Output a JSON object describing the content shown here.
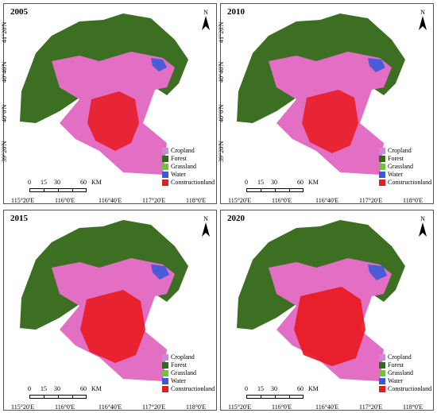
{
  "panels": [
    {
      "year": "2005"
    },
    {
      "year": "2010"
    },
    {
      "year": "2015"
    },
    {
      "year": "2020"
    }
  ],
  "north_label": "N",
  "lat_labels": [
    "41°20'N",
    "40°40'N",
    "40°0'N",
    "39°20'N"
  ],
  "lon_labels": [
    "115°20'E",
    "116°0'E",
    "116°40'E",
    "117°20'E",
    "118°0'E"
  ],
  "legend": [
    {
      "label": "Cropland",
      "color": "#c98bd6"
    },
    {
      "label": "Forest",
      "color": "#2f6b1d"
    },
    {
      "label": "Grassland",
      "color": "#6fc23d"
    },
    {
      "label": "Water",
      "color": "#3a59d6"
    },
    {
      "label": "Constructionland",
      "color": "#e02020"
    }
  ],
  "scale": {
    "ticks": [
      "0",
      "15",
      "30",
      "60"
    ],
    "unit": "KM"
  },
  "colors": {
    "forest": "#3d6f22",
    "cropland": "#e36fc4",
    "construction": "#e8191f",
    "water": "#4a5bd8"
  }
}
